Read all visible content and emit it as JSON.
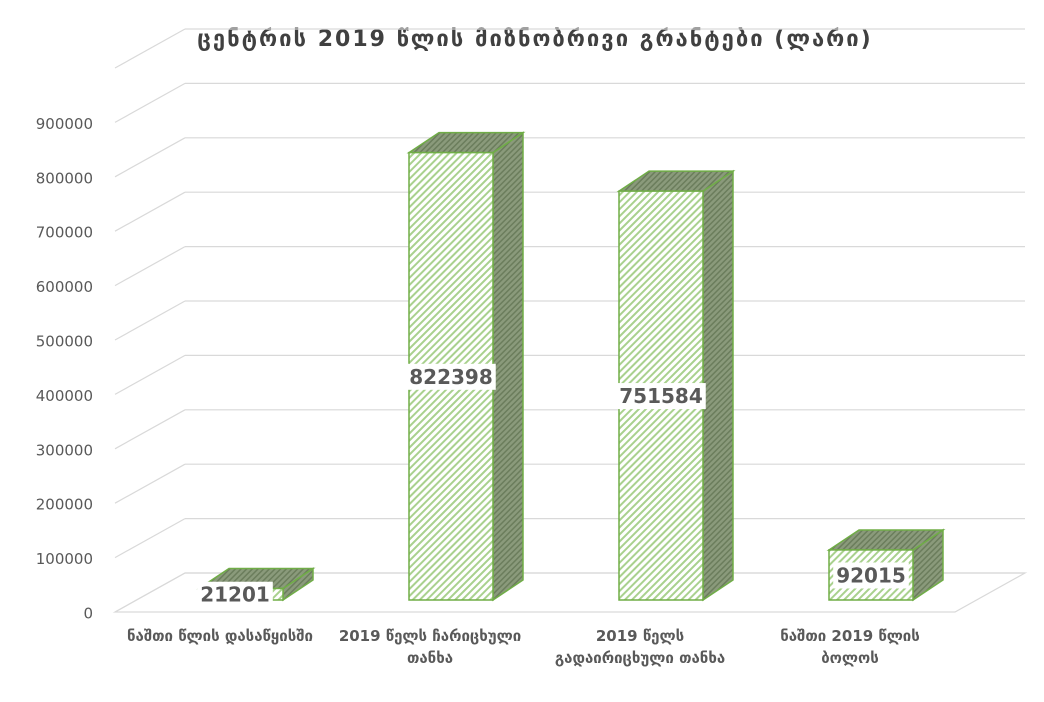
{
  "chart_data": {
    "type": "bar3d",
    "title": "ცენტრის 2019 წლის მიზნობრივი გრანტები (ლარი)",
    "categories": [
      "ნაშთი წლის დასაწყისში",
      "2019 წელს ჩარიცხული თანხა",
      "2019 წელს გადაირიცხული თანხა",
      "ნაშთი 2019 წლის ბოლოს"
    ],
    "values": [
      21201,
      822398,
      751584,
      92015
    ],
    "color": "#70ad47",
    "ylim": [
      0,
      1000000
    ],
    "yticks": [
      0,
      100000,
      200000,
      300000,
      400000,
      500000,
      600000,
      700000,
      800000,
      900000
    ],
    "grid": true
  }
}
